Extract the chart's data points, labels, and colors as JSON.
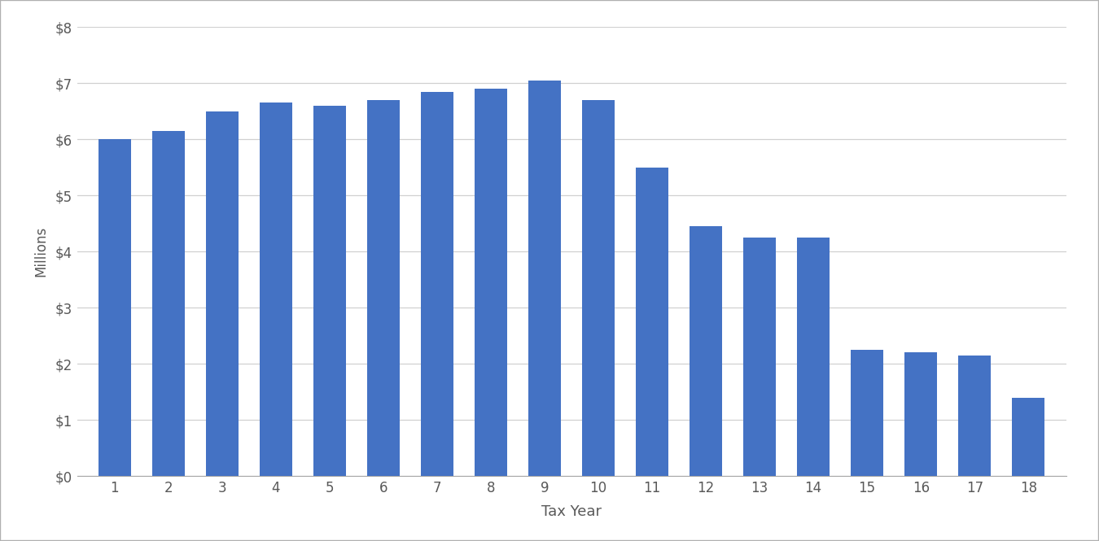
{
  "categories": [
    1,
    2,
    3,
    4,
    5,
    6,
    7,
    8,
    9,
    10,
    11,
    12,
    13,
    14,
    15,
    16,
    17,
    18
  ],
  "values": [
    6.0,
    6.15,
    6.5,
    6.65,
    6.6,
    6.7,
    6.85,
    6.9,
    7.05,
    6.7,
    5.5,
    4.45,
    4.25,
    4.25,
    2.25,
    2.2,
    2.15,
    1.4
  ],
  "bar_color": "#4472C4",
  "xlabel": "Tax Year",
  "ylabel": "Millions",
  "ylim": [
    0,
    8
  ],
  "yticks": [
    0,
    1,
    2,
    3,
    4,
    5,
    6,
    7,
    8
  ],
  "ytick_labels": [
    "$0",
    "$1",
    "$2",
    "$3",
    "$4",
    "$5",
    "$6",
    "$7",
    "$8"
  ],
  "background_color": "#ffffff",
  "plot_bg_color": "#ffffff",
  "grid_color": "#d0d0d0",
  "xlabel_fontsize": 13,
  "ylabel_fontsize": 12,
  "tick_fontsize": 12,
  "bar_width": 0.6,
  "tick_color": "#595959",
  "border_color": "#a6a6a6"
}
